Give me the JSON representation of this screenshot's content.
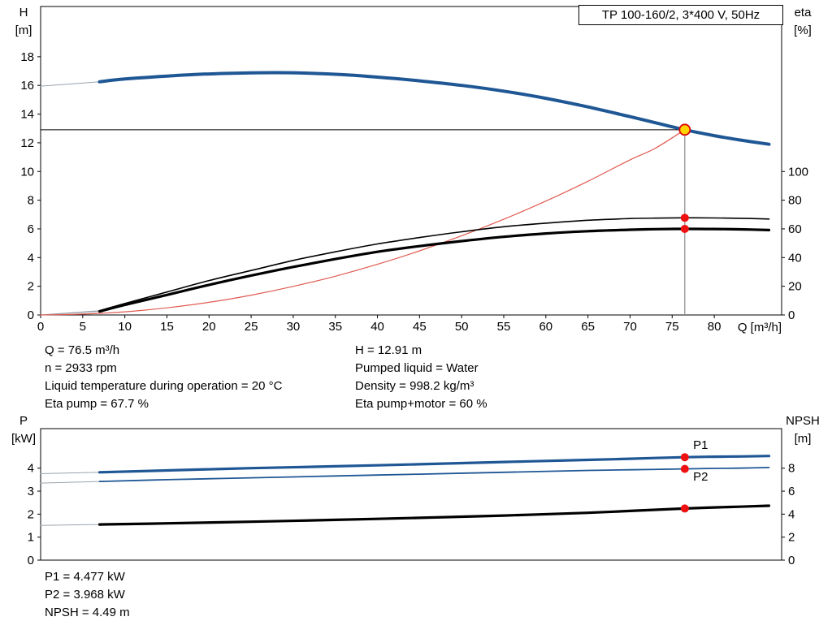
{
  "colors": {
    "curve_blue": "#1f5795",
    "label_blue": "#2e6fb0",
    "red": "#ee1111",
    "duty_ring": "#dd0000",
    "duty_fill": "#ffd400",
    "system_red": "#e05a50",
    "gray_line": "#8c8c8c",
    "ext_gray": "#9aa4ad",
    "black": "#000000"
  },
  "info_top": {
    "left": [
      "Q = 76.5 m³/h",
      "n = 2933 rpm",
      "Liquid temperature during operation = 20 °C",
      "Eta pump = 67.7 %"
    ],
    "right": [
      "H = 12.91 m",
      "Pumped liquid = Water",
      "Density = 998.2 kg/m³",
      "Eta pump+motor = 60 %"
    ]
  },
  "info_bottom": [
    "P1 = 4.477 kW",
    "P2 = 3.968 kW",
    "NPSH = 4.49 m"
  ],
  "chart_data": [
    {
      "id": "top",
      "type": "line",
      "title": "TP 100-160/2, 3*400 V, 50Hz",
      "x_axis": {
        "label": "Q [m³/h]",
        "min": 0,
        "max": 88,
        "ticks": [
          0,
          5,
          10,
          15,
          20,
          25,
          30,
          35,
          40,
          45,
          50,
          55,
          60,
          65,
          70,
          75,
          80
        ]
      },
      "y_left": {
        "title": [
          "H",
          "[m]"
        ],
        "min": 0,
        "max": 21.5,
        "ticks": [
          0,
          2,
          4,
          6,
          8,
          10,
          12,
          14,
          16,
          18
        ]
      },
      "y_right": {
        "title": [
          "eta",
          "[%]"
        ],
        "min": 0,
        "max": 215,
        "ticks": [
          0,
          20,
          40,
          60,
          80,
          100
        ]
      },
      "series": [
        {
          "name": "hq-curve-extension",
          "axis": "left",
          "color": "#9aa4ad",
          "width": 1,
          "points": [
            [
              0,
              15.95
            ],
            [
              7,
              16.25
            ]
          ]
        },
        {
          "name": "eta-pump-extension",
          "axis": "right",
          "color": "#9aa4ad",
          "width": 1,
          "points": [
            [
              0,
              0
            ],
            [
              7,
              3
            ]
          ]
        },
        {
          "name": "eta-pump-motor-extension",
          "axis": "right",
          "color": "#9aa4ad",
          "width": 1,
          "points": [
            [
              0,
              0
            ],
            [
              7,
              2.5
            ]
          ]
        },
        {
          "name": "system-curve",
          "axis": "left",
          "color": "#e05a50",
          "width": 1.2,
          "points": [
            [
              0,
              0
            ],
            [
              5,
              0.06
            ],
            [
              10,
              0.22
            ],
            [
              15,
              0.5
            ],
            [
              20,
              0.88
            ],
            [
              25,
              1.38
            ],
            [
              30,
              1.99
            ],
            [
              35,
              2.7
            ],
            [
              40,
              3.53
            ],
            [
              45,
              4.47
            ],
            [
              50,
              5.52
            ],
            [
              55,
              6.67
            ],
            [
              60,
              7.94
            ],
            [
              65,
              9.32
            ],
            [
              70,
              10.81
            ],
            [
              73,
              11.62
            ],
            [
              76.5,
              12.91
            ]
          ]
        },
        {
          "name": "eta-pump-curve",
          "axis": "right",
          "color": "#000000",
          "width": 1.6,
          "points": [
            [
              7,
              3
            ],
            [
              10,
              8
            ],
            [
              15,
              16
            ],
            [
              20,
              24
            ],
            [
              25,
              31
            ],
            [
              30,
              38
            ],
            [
              35,
              44
            ],
            [
              40,
              49.5
            ],
            [
              45,
              54
            ],
            [
              50,
              58
            ],
            [
              55,
              61.5
            ],
            [
              60,
              64
            ],
            [
              65,
              66
            ],
            [
              70,
              67.2
            ],
            [
              73,
              67.5
            ],
            [
              76.5,
              67.7
            ],
            [
              80,
              67.6
            ],
            [
              83,
              67.4
            ],
            [
              86.5,
              66.9
            ]
          ]
        },
        {
          "name": "eta-pump-motor-curve",
          "axis": "right",
          "color": "#000000",
          "width": 3.2,
          "points": [
            [
              7,
              2.5
            ],
            [
              10,
              7
            ],
            [
              15,
              14
            ],
            [
              20,
              21
            ],
            [
              25,
              27.5
            ],
            [
              30,
              33.5
            ],
            [
              35,
              39
            ],
            [
              40,
              44
            ],
            [
              45,
              48
            ],
            [
              50,
              51.5
            ],
            [
              55,
              54.5
            ],
            [
              60,
              56.8
            ],
            [
              65,
              58.4
            ],
            [
              70,
              59.4
            ],
            [
              73,
              59.8
            ],
            [
              76.5,
              60
            ],
            [
              80,
              59.9
            ],
            [
              83,
              59.7
            ],
            [
              86.5,
              59.2
            ]
          ]
        },
        {
          "name": "hq-curve",
          "axis": "left",
          "color": "#1f5795",
          "width": 4,
          "points": [
            [
              7,
              16.25
            ],
            [
              10,
              16.45
            ],
            [
              15,
              16.65
            ],
            [
              20,
              16.8
            ],
            [
              25,
              16.87
            ],
            [
              28,
              16.89
            ],
            [
              32,
              16.85
            ],
            [
              36,
              16.75
            ],
            [
              40,
              16.58
            ],
            [
              45,
              16.32
            ],
            [
              50,
              16.0
            ],
            [
              55,
              15.6
            ],
            [
              60,
              15.1
            ],
            [
              65,
              14.5
            ],
            [
              70,
              13.82
            ],
            [
              73,
              13.4
            ],
            [
              76.5,
              12.91
            ],
            [
              80,
              12.5
            ],
            [
              83,
              12.2
            ],
            [
              86.5,
              11.9
            ]
          ]
        }
      ],
      "lines": [
        {
          "x1": 0,
          "v1": 12.91,
          "x2": 76.5,
          "v2": 12.91,
          "axis": "left",
          "color": "#000000",
          "width": 1
        },
        {
          "x1": 76.5,
          "v1": 12.91,
          "x2": 76.5,
          "v2": 0,
          "axis": "left",
          "color": "#8c8c8c",
          "width": 1.2
        }
      ],
      "markers": [
        {
          "q": 76.5,
          "v": 67.7,
          "axis": "right",
          "kind": "dot"
        },
        {
          "q": 76.5,
          "v": 60,
          "axis": "right",
          "kind": "dot"
        },
        {
          "q": 76.5,
          "v": 12.91,
          "axis": "left",
          "kind": "duty"
        }
      ],
      "labels": []
    },
    {
      "id": "bottom",
      "type": "line",
      "title": "",
      "x_axis": {
        "label": "",
        "min": 0,
        "max": 88,
        "ticks": []
      },
      "y_left": {
        "title": [
          "P",
          "[kW]"
        ],
        "min": 0,
        "max": 5.72,
        "ticks": [
          0,
          1,
          2,
          3,
          4
        ]
      },
      "y_right": {
        "title": [
          "NPSH",
          "[m]"
        ],
        "min": 0,
        "max": 11.44,
        "ticks": [
          0,
          2,
          4,
          6,
          8
        ]
      },
      "series": [
        {
          "name": "p1-extension",
          "axis": "left",
          "color": "#9aa4ad",
          "width": 1,
          "points": [
            [
              0,
              3.76
            ],
            [
              7,
              3.82
            ]
          ]
        },
        {
          "name": "p2-extension",
          "axis": "left",
          "color": "#9aa4ad",
          "width": 1,
          "points": [
            [
              0,
              3.35
            ],
            [
              7,
              3.42
            ]
          ]
        },
        {
          "name": "npsh-extension",
          "axis": "right",
          "color": "#9aa4ad",
          "width": 1,
          "points": [
            [
              0,
              3.02
            ],
            [
              7,
              3.1
            ]
          ]
        },
        {
          "name": "p2-curve",
          "axis": "left",
          "color": "#1f5795",
          "width": 1.8,
          "points": [
            [
              7,
              3.42
            ],
            [
              15,
              3.5
            ],
            [
              25,
              3.58
            ],
            [
              35,
              3.66
            ],
            [
              45,
              3.74
            ],
            [
              55,
              3.82
            ],
            [
              65,
              3.9
            ],
            [
              70,
              3.93
            ],
            [
              76.5,
              3.968
            ],
            [
              80,
              3.99
            ],
            [
              83,
              4.0
            ],
            [
              86.5,
              4.03
            ]
          ]
        },
        {
          "name": "p1-curve",
          "axis": "left",
          "color": "#1f5795",
          "width": 3.2,
          "points": [
            [
              7,
              3.82
            ],
            [
              15,
              3.9
            ],
            [
              25,
              4.0
            ],
            [
              35,
              4.08
            ],
            [
              45,
              4.17
            ],
            [
              55,
              4.27
            ],
            [
              65,
              4.36
            ],
            [
              70,
              4.41
            ],
            [
              76.5,
              4.477
            ],
            [
              80,
              4.5
            ],
            [
              83,
              4.51
            ],
            [
              86.5,
              4.53
            ]
          ]
        },
        {
          "name": "npsh-curve",
          "axis": "right",
          "color": "#000000",
          "width": 3.2,
          "points": [
            [
              7,
              3.1
            ],
            [
              15,
              3.2
            ],
            [
              25,
              3.34
            ],
            [
              35,
              3.5
            ],
            [
              45,
              3.68
            ],
            [
              55,
              3.88
            ],
            [
              65,
              4.12
            ],
            [
              70,
              4.28
            ],
            [
              76.5,
              4.49
            ],
            [
              80,
              4.58
            ],
            [
              83,
              4.65
            ],
            [
              86.5,
              4.73
            ]
          ]
        }
      ],
      "lines": [],
      "markers": [
        {
          "q": 76.5,
          "v": 4.477,
          "axis": "left",
          "kind": "dot"
        },
        {
          "q": 76.5,
          "v": 3.968,
          "axis": "left",
          "kind": "dot"
        },
        {
          "q": 76.5,
          "v": 4.49,
          "axis": "right",
          "kind": "dot"
        }
      ],
      "labels": [
        {
          "q": 77.5,
          "v": 4.84,
          "axis": "left",
          "text": "P1",
          "color": "#2e6fb0"
        },
        {
          "q": 77.5,
          "v": 3.46,
          "axis": "left",
          "text": "P2",
          "color": "#2e6fb0"
        }
      ]
    }
  ]
}
